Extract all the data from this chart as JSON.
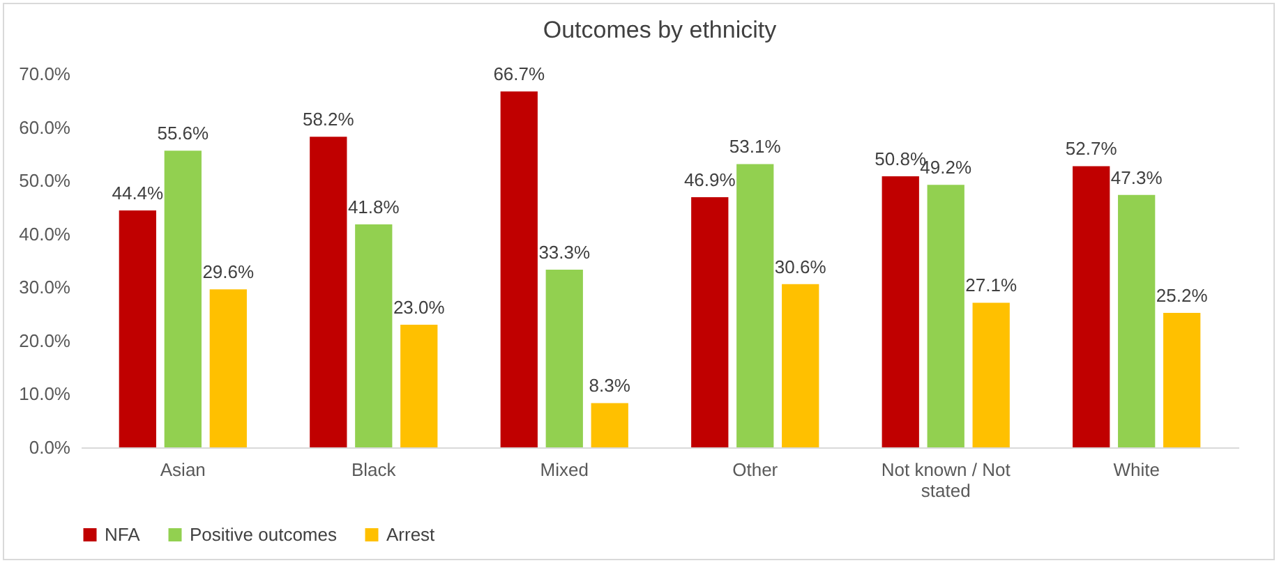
{
  "chart_data": {
    "type": "bar",
    "title": "Outcomes by ethnicity",
    "categories": [
      "Asian",
      "Black",
      "Mixed",
      "Other",
      "Not known / Not stated",
      "White"
    ],
    "series": [
      {
        "name": "NFA",
        "color": "#c00000",
        "values": [
          44.4,
          58.2,
          66.7,
          46.9,
          50.8,
          52.7
        ],
        "value_labels": [
          "44.4%",
          "58.2%",
          "66.7%",
          "46.9%",
          "50.8%",
          "52.7%"
        ]
      },
      {
        "name": "Positive outcomes",
        "color": "#92d050",
        "values": [
          55.6,
          41.8,
          33.3,
          53.1,
          49.2,
          47.3
        ],
        "value_labels": [
          "55.6%",
          "41.8%",
          "33.3%",
          "53.1%",
          "49.2%",
          "47.3%"
        ]
      },
      {
        "name": "Arrest",
        "color": "#ffc000",
        "values": [
          29.6,
          23.0,
          8.3,
          30.6,
          27.1,
          25.2
        ],
        "value_labels": [
          "29.6%",
          "23.0%",
          "8.3%",
          "30.6%",
          "27.1%",
          "25.2%"
        ]
      }
    ],
    "ylim": [
      0,
      70
    ],
    "yticks": [
      {
        "value": 0,
        "label": "0.0%"
      },
      {
        "value": 10,
        "label": "10.0%"
      },
      {
        "value": 20,
        "label": "20.0%"
      },
      {
        "value": 30,
        "label": "30.0%"
      },
      {
        "value": 40,
        "label": "40.0%"
      },
      {
        "value": 50,
        "label": "50.0%"
      },
      {
        "value": 60,
        "label": "60.0%"
      },
      {
        "value": 70,
        "label": "70.0%"
      }
    ],
    "grid": false,
    "legend": "bottom"
  }
}
